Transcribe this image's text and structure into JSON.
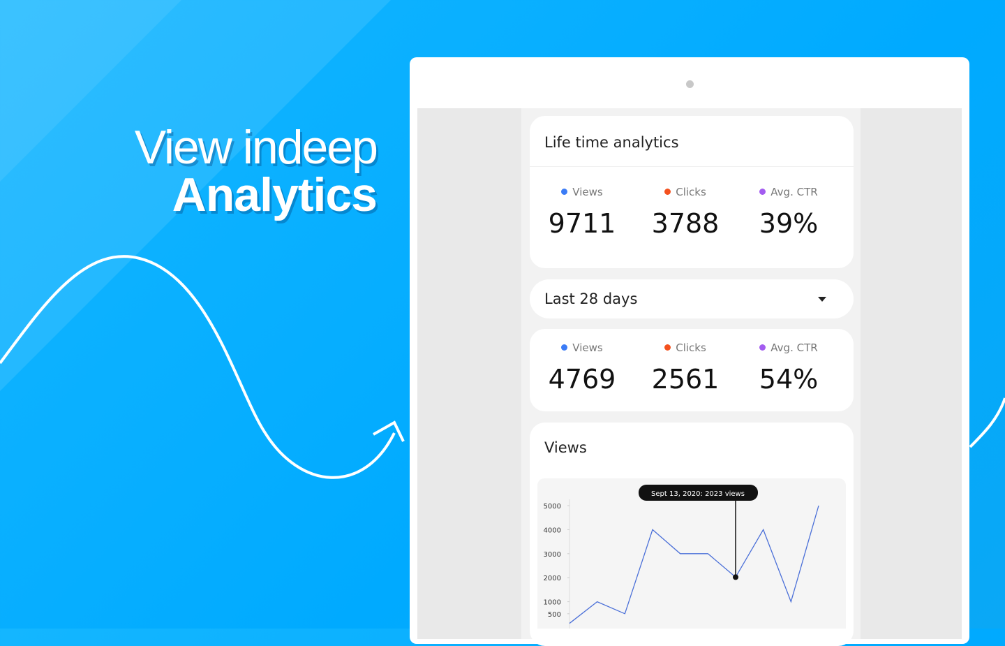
{
  "headline": {
    "line1": "View indeep",
    "line2": "Analytics"
  },
  "lifetime": {
    "title": "Life time analytics",
    "stats": [
      {
        "label": "Views",
        "value": "9711"
      },
      {
        "label": "Clicks",
        "value": "3788"
      },
      {
        "label": "Avg. CTR",
        "value": "39%"
      }
    ]
  },
  "period": {
    "selector": "Last 28 days",
    "stats": [
      {
        "label": "Views",
        "value": "4769"
      },
      {
        "label": "Clicks",
        "value": "2561"
      },
      {
        "label": "Avg. CTR",
        "value": "54%"
      }
    ]
  },
  "chart_data": {
    "type": "line",
    "title": "Views",
    "categories": [
      null,
      null,
      null,
      null,
      null,
      null,
      null,
      null,
      null,
      null
    ],
    "series": [
      {
        "name": "Views",
        "color": "#4a6fd8",
        "values": [
          100,
          1000,
          500,
          4000,
          3000,
          3000,
          2023,
          4000,
          1000,
          5000
        ]
      }
    ],
    "ylim": [
      0,
      5000
    ],
    "yticks": [
      500,
      1000,
      2000,
      3000,
      4000,
      5000
    ],
    "annotations": [
      {
        "index": 6,
        "text": "Sept 13, 2020: 2023 views"
      }
    ]
  }
}
